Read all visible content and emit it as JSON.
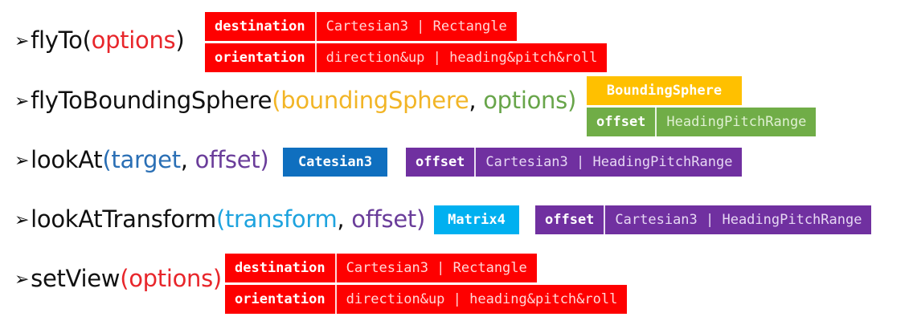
{
  "methods": {
    "flyTo": {
      "name": "flyTo",
      "open": "(",
      "param1": "options",
      "close": ")"
    },
    "flyToBoundingSphere": {
      "name": "flyToBoundingSphere",
      "open": "(",
      "param1": "boundingSphere",
      "comma": ", ",
      "param2": "options",
      "close": ")"
    },
    "lookAt": {
      "name": "lookAt",
      "open": "(",
      "param1": "target",
      "comma": ", ",
      "param2": "offset",
      "close": ")"
    },
    "lookAtTransform": {
      "name": "lookAtTransform",
      "open": "(",
      "param1": "transform",
      "comma": ", ",
      "param2": "offset",
      "close": ")"
    },
    "setView": {
      "name": "setView",
      "open": "(",
      "param1": "options",
      "close": ")"
    }
  },
  "bullet": "➢",
  "tags": {
    "flyTo_destination": {
      "key": "destination",
      "value": "Cartesian3 | Rectangle"
    },
    "flyTo_orientation": {
      "key": "orientation",
      "value": "direction&up | heading&pitch&roll"
    },
    "fbs_sphere": {
      "label": "BoundingSphere"
    },
    "fbs_offset": {
      "key": "offset",
      "value": "HeadingPitchRange"
    },
    "lookAt_target": {
      "label": "Catesian3"
    },
    "lookAt_offset": {
      "key": "offset",
      "value": "Cartesian3 | HeadingPitchRange"
    },
    "lat_transform": {
      "label": "Matrix4"
    },
    "lat_offset": {
      "key": "offset",
      "value": "Cartesian3 | HeadingPitchRange"
    },
    "setView_destination": {
      "key": "destination",
      "value": "Cartesian3 | Rectangle"
    },
    "setView_orientation": {
      "key": "orientation",
      "value": "direction&up | heading&pitch&roll"
    }
  },
  "colors": {
    "red": "#fe0000",
    "orange": "#ffc000",
    "green": "#70ad47",
    "blue": "#0f6fbf",
    "purple": "#7030a0",
    "cyan": "#00b0f0"
  }
}
